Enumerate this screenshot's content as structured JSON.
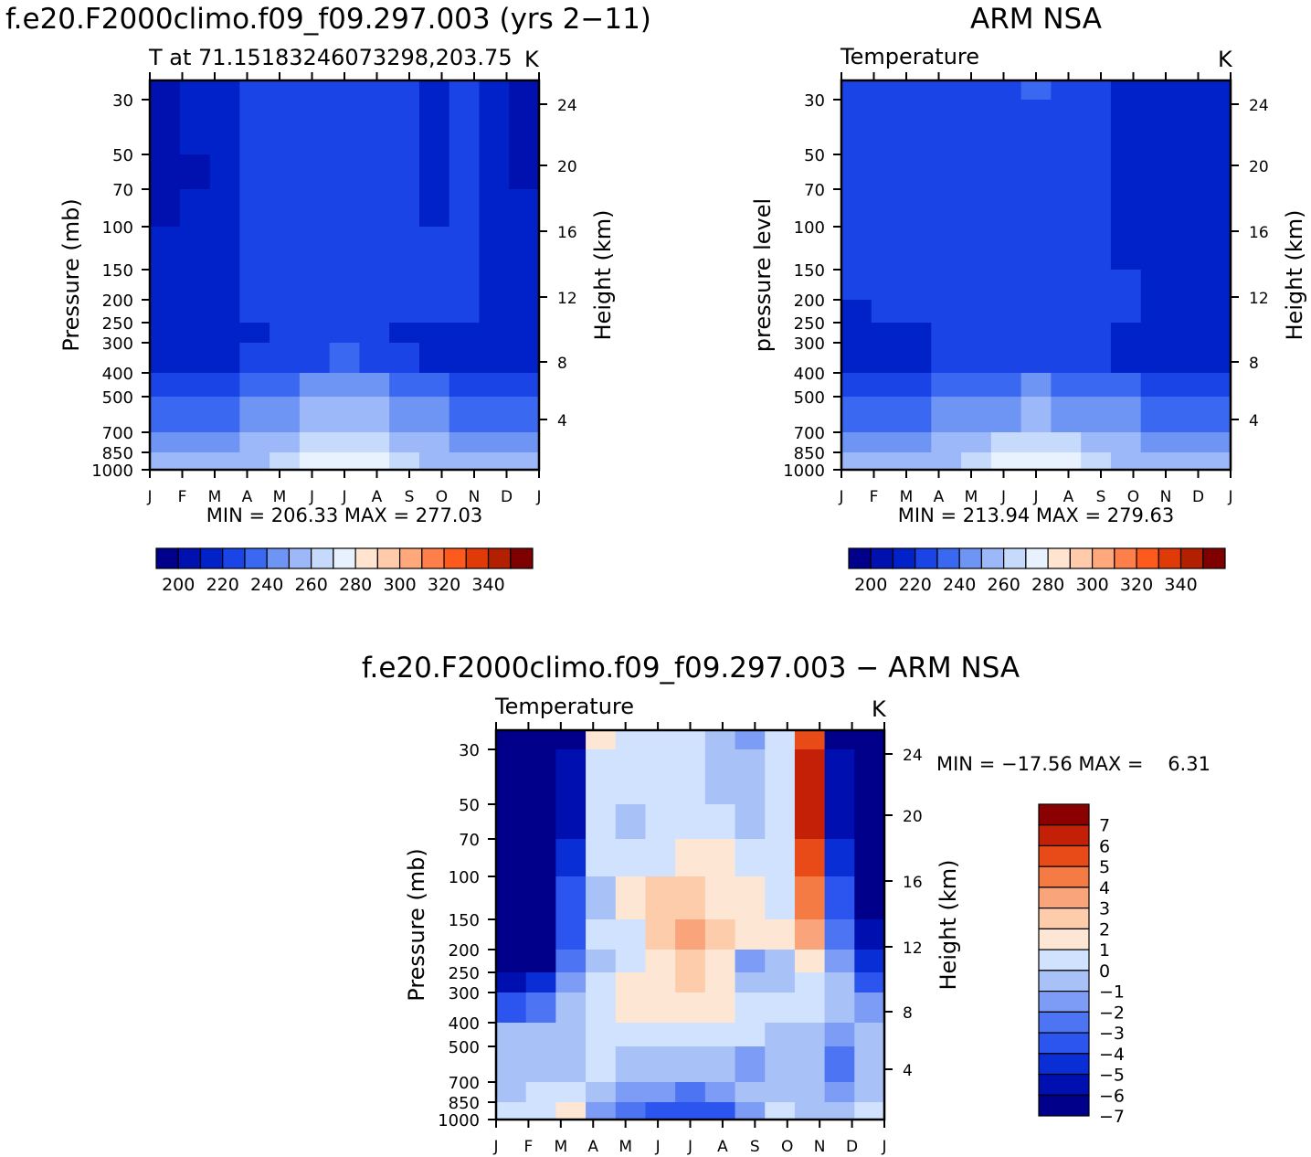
{
  "figure": {
    "left_title": "f.e20.F2000climo.f09_f09.297.003 (yrs 2−11)",
    "right_title": "ARM NSA",
    "bottom_title": "f.e20.F2000climo.f09_f09.297.003 − ARM NSA"
  },
  "colors": {
    "temp_levels": [
      "#00008b",
      "#0011b0",
      "#0022c8",
      "#1a44e6",
      "#3a68f0",
      "#6e94f4",
      "#9db8f8",
      "#c6dafc",
      "#e8f2ff",
      "#ffe4d0",
      "#ffcbaa",
      "#ffa87c",
      "#ff7f4a",
      "#ff5a1e",
      "#e03a08",
      "#b32000",
      "#7f0000"
    ],
    "diff_levels": [
      "#00008b",
      "#0010b0",
      "#0a2ed6",
      "#2c54ee",
      "#4d74f2",
      "#7c9cf5",
      "#a8c2f8",
      "#d0e2fd",
      "#fde6d4",
      "#fcccab",
      "#f9a47a",
      "#f47b44",
      "#e84a18",
      "#c42008",
      "#8b0000"
    ]
  },
  "chart_data": [
    {
      "type": "heatmap",
      "panel": "model",
      "subtitle": "T at 71.15183246073298,203.75",
      "units": "K",
      "ylabel": "Pressure (mb)",
      "ylabel_right": "Height (km)",
      "stats": "MIN = 206.33 MAX = 277.03",
      "x_ticks": [
        "J",
        "F",
        "M",
        "A",
        "M",
        "J",
        "J",
        "A",
        "S",
        "O",
        "N",
        "D",
        "J"
      ],
      "y_ticks": [
        "30",
        "50",
        "70",
        "100",
        "150",
        "200",
        "250",
        "300",
        "400",
        "500",
        "700",
        "850",
        "1000"
      ],
      "right_ticks": [
        "24",
        "20",
        "16",
        "12",
        "8",
        "4"
      ],
      "colorbar_labels": [
        "200",
        "220",
        "240",
        "260",
        "280",
        "300",
        "320",
        "340"
      ],
      "levels_y_mb": [
        25,
        30,
        50,
        70,
        100,
        150,
        200,
        250,
        300,
        400,
        500,
        700,
        850,
        1000
      ],
      "grid": [
        [
          1,
          2,
          2,
          3,
          3,
          3,
          3,
          3,
          3,
          2,
          3,
          2,
          1
        ],
        [
          1,
          2,
          2,
          3,
          3,
          3,
          3,
          3,
          3,
          2,
          3,
          2,
          1
        ],
        [
          1,
          1,
          2,
          3,
          3,
          3,
          3,
          3,
          3,
          2,
          3,
          2,
          1
        ],
        [
          1,
          2,
          2,
          3,
          3,
          3,
          3,
          3,
          3,
          2,
          3,
          2,
          2
        ],
        [
          2,
          2,
          2,
          3,
          3,
          3,
          3,
          3,
          3,
          3,
          3,
          2,
          2
        ],
        [
          2,
          2,
          2,
          3,
          3,
          3,
          3,
          3,
          3,
          3,
          3,
          2,
          2
        ],
        [
          2,
          2,
          2,
          3,
          3,
          3,
          3,
          3,
          3,
          3,
          3,
          2,
          2
        ],
        [
          2,
          2,
          2,
          2,
          3,
          3,
          3,
          3,
          2,
          2,
          2,
          2,
          2
        ],
        [
          2,
          2,
          2,
          3,
          3,
          3,
          4,
          3,
          3,
          2,
          2,
          2,
          2
        ],
        [
          3,
          3,
          3,
          4,
          4,
          5,
          5,
          5,
          4,
          4,
          3,
          3,
          3
        ],
        [
          4,
          4,
          4,
          5,
          5,
          6,
          6,
          6,
          5,
          5,
          4,
          4,
          4
        ],
        [
          5,
          5,
          5,
          6,
          6,
          7,
          7,
          7,
          6,
          6,
          5,
          5,
          5
        ],
        [
          6,
          6,
          6,
          6,
          7,
          8,
          8,
          8,
          7,
          6,
          6,
          6,
          6
        ],
        [
          6,
          6,
          6,
          7,
          8,
          9,
          9,
          9,
          8,
          7,
          6,
          6,
          6
        ]
      ]
    },
    {
      "type": "heatmap",
      "panel": "obs",
      "subtitle": "Temperature",
      "units": "K",
      "ylabel": "pressure level",
      "ylabel_right": "Height (km)",
      "stats": "MIN = 213.94 MAX = 279.63",
      "x_ticks": [
        "J",
        "F",
        "M",
        "A",
        "M",
        "J",
        "J",
        "A",
        "S",
        "O",
        "N",
        "D",
        "J"
      ],
      "y_ticks": [
        "30",
        "50",
        "70",
        "100",
        "150",
        "200",
        "250",
        "300",
        "400",
        "500",
        "700",
        "850",
        "1000"
      ],
      "right_ticks": [
        "24",
        "20",
        "16",
        "12",
        "8",
        "4"
      ],
      "colorbar_labels": [
        "200",
        "220",
        "240",
        "260",
        "280",
        "300",
        "320",
        "340"
      ],
      "levels_y_mb": [
        25,
        30,
        50,
        70,
        100,
        150,
        200,
        250,
        300,
        400,
        500,
        700,
        850,
        1000
      ],
      "grid": [
        [
          3,
          3,
          3,
          3,
          3,
          3,
          4,
          3,
          3,
          2,
          2,
          2,
          2
        ],
        [
          3,
          3,
          3,
          3,
          3,
          3,
          3,
          3,
          3,
          2,
          2,
          2,
          2
        ],
        [
          3,
          3,
          3,
          3,
          3,
          3,
          3,
          3,
          3,
          2,
          2,
          2,
          2
        ],
        [
          3,
          3,
          3,
          3,
          3,
          3,
          3,
          3,
          3,
          2,
          2,
          2,
          2
        ],
        [
          3,
          3,
          3,
          3,
          3,
          3,
          3,
          3,
          3,
          2,
          2,
          2,
          2
        ],
        [
          3,
          3,
          3,
          3,
          3,
          3,
          3,
          3,
          3,
          3,
          2,
          2,
          2
        ],
        [
          2,
          3,
          3,
          3,
          3,
          3,
          3,
          3,
          3,
          3,
          2,
          2,
          2
        ],
        [
          2,
          2,
          2,
          3,
          3,
          3,
          3,
          3,
          3,
          2,
          2,
          2,
          2
        ],
        [
          2,
          2,
          2,
          3,
          3,
          3,
          3,
          3,
          3,
          2,
          2,
          2,
          2
        ],
        [
          3,
          3,
          3,
          4,
          4,
          4,
          5,
          4,
          4,
          4,
          3,
          3,
          3
        ],
        [
          4,
          4,
          4,
          5,
          5,
          5,
          6,
          5,
          5,
          5,
          4,
          4,
          4
        ],
        [
          5,
          5,
          5,
          6,
          6,
          7,
          7,
          7,
          6,
          6,
          5,
          5,
          5
        ],
        [
          6,
          6,
          6,
          6,
          7,
          8,
          8,
          8,
          7,
          6,
          6,
          6,
          6
        ],
        [
          6,
          6,
          7,
          8,
          9,
          9,
          9,
          9,
          9,
          8,
          7,
          6,
          6
        ]
      ]
    },
    {
      "type": "heatmap",
      "panel": "difference",
      "subtitle": "Temperature",
      "units": "K",
      "ylabel": "Pressure (mb)",
      "ylabel_right": "Height (km)",
      "stats": "MIN = −17.56 MAX =    6.31",
      "x_ticks": [
        "J",
        "F",
        "M",
        "A",
        "M",
        "J",
        "J",
        "A",
        "S",
        "O",
        "N",
        "D",
        "J"
      ],
      "y_ticks": [
        "30",
        "50",
        "70",
        "100",
        "150",
        "200",
        "250",
        "300",
        "400",
        "500",
        "700",
        "850",
        "1000"
      ],
      "right_ticks": [
        "24",
        "20",
        "16",
        "12",
        "8",
        "4"
      ],
      "colorbar_labels": [
        "7",
        "6",
        "5",
        "4",
        "3",
        "2",
        "1",
        "0",
        "−1",
        "−2",
        "−3",
        "−4",
        "−5",
        "−6",
        "−7"
      ],
      "levels_y_mb": [
        25,
        30,
        50,
        70,
        100,
        150,
        200,
        250,
        300,
        400,
        500,
        700,
        850,
        1000
      ],
      "grid": [
        [
          0,
          0,
          0,
          8,
          7,
          7,
          7,
          6,
          5,
          7,
          12,
          0,
          0
        ],
        [
          0,
          0,
          1,
          7,
          7,
          7,
          7,
          6,
          6,
          7,
          13,
          1,
          0
        ],
        [
          0,
          0,
          1,
          7,
          6,
          7,
          7,
          7,
          6,
          7,
          13,
          1,
          0
        ],
        [
          0,
          0,
          2,
          7,
          7,
          7,
          8,
          8,
          7,
          7,
          12,
          2,
          0
        ],
        [
          0,
          0,
          3,
          6,
          8,
          9,
          9,
          8,
          8,
          7,
          11,
          3,
          0
        ],
        [
          0,
          0,
          3,
          7,
          7,
          9,
          10,
          9,
          8,
          8,
          10,
          4,
          1
        ],
        [
          0,
          0,
          4,
          6,
          7,
          8,
          9,
          8,
          5,
          6,
          8,
          5,
          2
        ],
        [
          1,
          2,
          5,
          7,
          8,
          8,
          9,
          8,
          6,
          6,
          7,
          6,
          3
        ],
        [
          3,
          4,
          6,
          7,
          8,
          8,
          8,
          8,
          7,
          7,
          7,
          6,
          5
        ],
        [
          6,
          6,
          6,
          7,
          7,
          7,
          7,
          7,
          7,
          6,
          6,
          5,
          6
        ],
        [
          6,
          6,
          6,
          7,
          6,
          6,
          6,
          6,
          5,
          6,
          6,
          4,
          6
        ],
        [
          6,
          7,
          7,
          6,
          5,
          5,
          4,
          5,
          6,
          6,
          6,
          5,
          6
        ],
        [
          7,
          7,
          8,
          5,
          4,
          3,
          3,
          3,
          5,
          7,
          6,
          6,
          7
        ],
        [
          7,
          7,
          8,
          8,
          7,
          6,
          6,
          7,
          7,
          7,
          7,
          7,
          7
        ]
      ]
    }
  ]
}
